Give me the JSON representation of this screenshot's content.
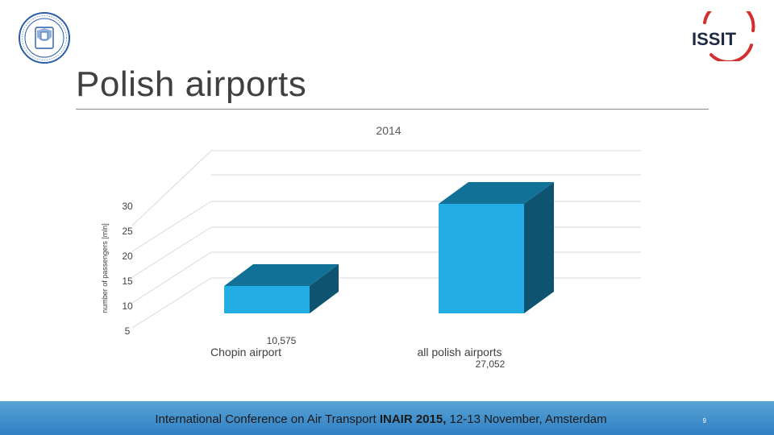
{
  "slide": {
    "title": "Polish airports",
    "page_number": "9",
    "footer": {
      "prefix": "International Conference on Air Transport ",
      "bold": "INAIR 2015,",
      "suffix": " 12-13 November, Amsterdam"
    },
    "logos": {
      "left": "university-seal",
      "right": "ISSIT"
    }
  },
  "chart_data": {
    "type": "bar",
    "title": "2014",
    "ylabel": "number of passengers [mln]",
    "xlabel": "",
    "categories": [
      "Chopin airport",
      "all polish airports"
    ],
    "values": [
      10.575,
      27.052
    ],
    "value_labels": [
      "10,575",
      "27,052"
    ],
    "y_ticks": [
      "5",
      "10",
      "15",
      "20",
      "25",
      "30"
    ],
    "ylim": [
      5,
      30
    ],
    "style": "3d-column",
    "colors": {
      "front": "#22ade4",
      "top": "#127196",
      "side": "#0e5470",
      "grid": "#d9d9d9",
      "footer": "#3b8bc9"
    }
  }
}
